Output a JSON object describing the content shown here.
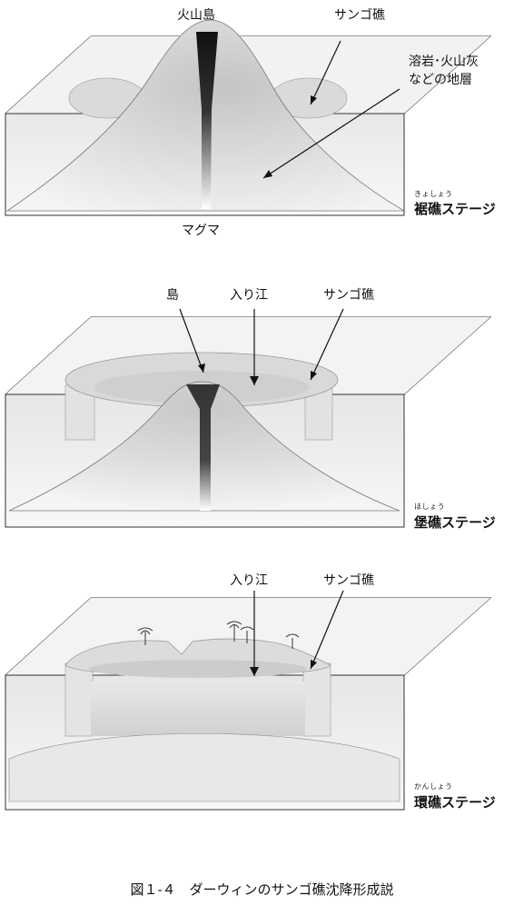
{
  "stages": [
    {
      "name": "裾礁ステージ",
      "ruby": "きょしょう",
      "labels": {
        "volcano": "火山島",
        "coral": "サンゴ礁",
        "strata": "溶岩･火山灰\nなどの地層",
        "magma": "マグマ"
      }
    },
    {
      "name": "堡礁ステージ",
      "ruby": "ほしょう",
      "labels": {
        "island": "島",
        "lagoon": "入り江",
        "coral": "サンゴ礁"
      }
    },
    {
      "name": "環礁ステージ",
      "ruby": "かんしょう",
      "labels": {
        "lagoon": "入り江",
        "coral": "サンゴ礁"
      }
    }
  ],
  "caption": "図１-４　ダーウィンのサンゴ礁沈降形成説"
}
